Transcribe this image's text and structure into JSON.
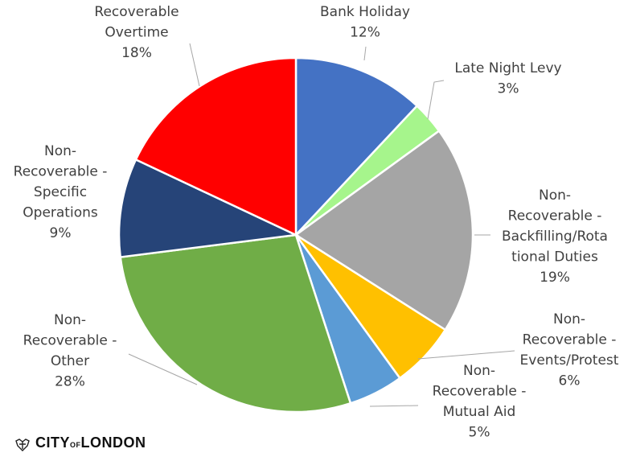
{
  "chart_data": {
    "type": "pie",
    "title": "",
    "start_angle_deg": 0,
    "direction": "clockwise",
    "slices": [
      {
        "label_lines": [
          "Bank Holiday"
        ],
        "value": 12,
        "pct_label": "12%",
        "color": "#4472C4"
      },
      {
        "label_lines": [
          "Late Night Levy"
        ],
        "value": 3,
        "pct_label": "3%",
        "color": "#A6F58C"
      },
      {
        "label_lines": [
          "Non-",
          "Recoverable -",
          "Backfilling/Rota",
          "tional Duties"
        ],
        "value": 19,
        "pct_label": "19%",
        "color": "#A5A5A5"
      },
      {
        "label_lines": [
          "Non-",
          "Recoverable -",
          "Events/Protest"
        ],
        "value": 6,
        "pct_label": "6%",
        "color": "#FFC000"
      },
      {
        "label_lines": [
          "Non-",
          "Recoverable -",
          "Mutual Aid"
        ],
        "value": 5,
        "pct_label": "5%",
        "color": "#5B9BD5"
      },
      {
        "label_lines": [
          "Non-",
          "Recoverable -",
          "Other"
        ],
        "value": 28,
        "pct_label": "28%",
        "color": "#70AD47"
      },
      {
        "label_lines": [
          "Non-",
          "Recoverable -",
          "Specific",
          "Operations"
        ],
        "value": 9,
        "pct_label": "9%",
        "color": "#264478"
      },
      {
        "label_lines": [
          "Recoverable",
          "Overtime"
        ],
        "value": 18,
        "pct_label": "18%",
        "color": "#FF0000"
      }
    ]
  },
  "logo": {
    "text_main": "CITY",
    "text_of": "OF",
    "text_end": "LONDON",
    "crest_icon": "city-crest-icon"
  }
}
